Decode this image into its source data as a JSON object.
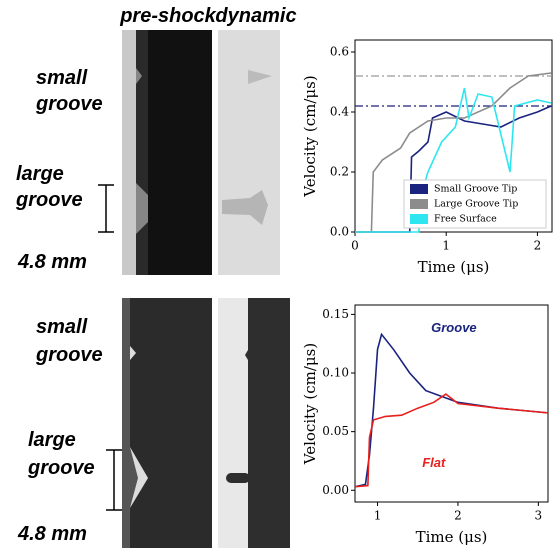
{
  "figure": {
    "column_headers": [
      "pre-shock",
      "dynamic"
    ],
    "rows": [
      {
        "labels": [
          "small",
          "groove",
          "large",
          "groove"
        ],
        "scale": "4.8 mm"
      },
      {
        "labels": [
          "small",
          "groove",
          "large",
          "groove"
        ],
        "scale": "4.8 mm"
      }
    ]
  },
  "chart_data": [
    {
      "type": "line",
      "xlabel": "Time (μs)",
      "ylabel": "Velocity (cm/μs)",
      "xlim": [
        0,
        2.16
      ],
      "ylim": [
        0,
        0.64
      ],
      "xticks": [
        0,
        1,
        2
      ],
      "yticks": [
        {
          "value": 0,
          "label": "0.0"
        },
        0.2,
        0.4,
        0.6
      ],
      "legend": "lower-right",
      "ref_lines": [
        {
          "value": 0.52,
          "color": "#9a9a9a"
        },
        {
          "value": 0.42,
          "color": "#1a237e"
        }
      ],
      "series": [
        {
          "name": "Small Groove Tip",
          "color": "#1a237e",
          "x": [
            0,
            0.6,
            0.62,
            0.7,
            0.8,
            0.85,
            1.0,
            1.2,
            1.4,
            1.6,
            1.8,
            2.0,
            2.15
          ],
          "values": [
            0,
            0,
            0.25,
            0.27,
            0.3,
            0.38,
            0.4,
            0.37,
            0.36,
            0.35,
            0.38,
            0.4,
            0.42
          ]
        },
        {
          "name": "Large Groove Tip",
          "color": "#8c8c8c",
          "x": [
            0,
            0.18,
            0.2,
            0.3,
            0.5,
            0.6,
            0.8,
            1.0,
            1.2,
            1.5,
            1.7,
            1.9,
            2.15
          ],
          "values": [
            0,
            0,
            0.2,
            0.24,
            0.28,
            0.33,
            0.37,
            0.38,
            0.38,
            0.42,
            0.48,
            0.52,
            0.53
          ]
        },
        {
          "name": "Free Surface",
          "color": "#2ee6f0",
          "x": [
            0,
            0.7,
            0.72,
            0.8,
            0.95,
            1.1,
            1.2,
            1.25,
            1.35,
            1.5,
            1.7,
            1.75,
            2.0,
            2.15
          ],
          "values": [
            0,
            0,
            0.12,
            0.2,
            0.3,
            0.35,
            0.48,
            0.38,
            0.46,
            0.45,
            0.2,
            0.42,
            0.44,
            0.43
          ]
        }
      ]
    },
    {
      "type": "line",
      "xlabel": "Time (μs)",
      "ylabel": "Velocity (cm/μs)",
      "xlim": [
        0.72,
        3.12
      ],
      "ylim": [
        -0.01,
        0.158
      ],
      "xticks": [
        1,
        2,
        3
      ],
      "yticks": [
        {
          "value": 0,
          "label": "0.00"
        },
        {
          "value": 0.05,
          "label": "0.05"
        },
        {
          "value": 0.1,
          "label": "0.10"
        },
        {
          "value": 0.15,
          "label": "0.15"
        }
      ],
      "series": [
        {
          "name": "Groove",
          "color": "#1a237e",
          "x": [
            0.72,
            0.85,
            0.9,
            0.95,
            1.0,
            1.05,
            1.2,
            1.4,
            1.6,
            1.8,
            2.0,
            2.5,
            3.12
          ],
          "values": [
            0.003,
            0.005,
            0.03,
            0.07,
            0.12,
            0.133,
            0.12,
            0.1,
            0.085,
            0.08,
            0.075,
            0.07,
            0.066
          ]
        },
        {
          "name": "Flat",
          "color": "#e8201c",
          "x": [
            0.72,
            0.88,
            0.9,
            0.95,
            1.1,
            1.3,
            1.5,
            1.7,
            1.85,
            2.0,
            2.5,
            3.12
          ],
          "values": [
            0.003,
            0.004,
            0.045,
            0.06,
            0.063,
            0.064,
            0.07,
            0.075,
            0.082,
            0.074,
            0.07,
            0.066
          ]
        }
      ]
    }
  ]
}
